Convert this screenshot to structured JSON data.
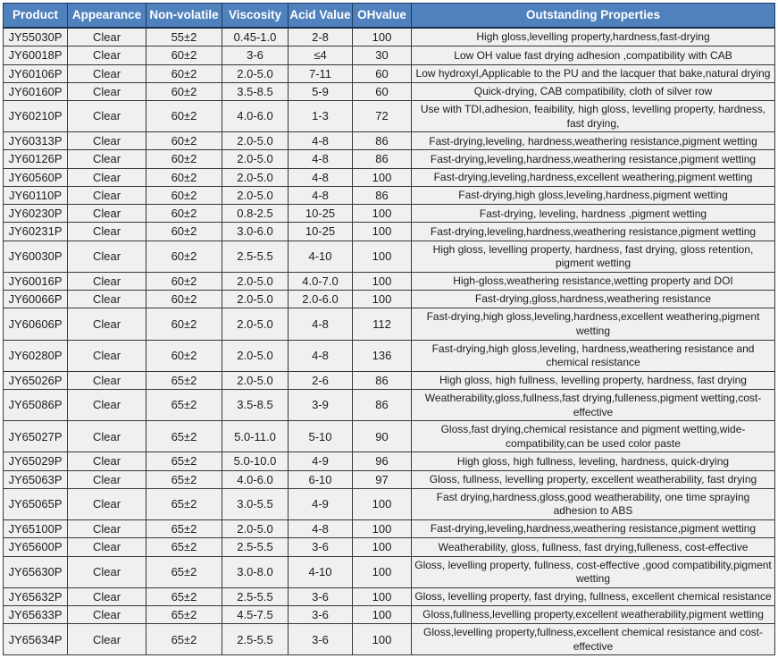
{
  "colors": {
    "header_bg": "#4f81bd",
    "header_text": "#ffffff",
    "cell_bg": "#f0f0f0",
    "cell_text": "#1c1c1c",
    "grid_border": "#383838"
  },
  "table": {
    "columns": [
      "Product",
      "Appearance",
      "Non-volatile",
      "Viscosity",
      "Acid Value",
      "OHvalue",
      "Outstanding Properties"
    ],
    "fields": [
      "product",
      "appearance",
      "non_volatile",
      "viscosity",
      "acid_value",
      "oh_value",
      "properties"
    ],
    "rows": [
      {
        "product": "JY55030P",
        "appearance": "Clear",
        "non_volatile": "55±2",
        "viscosity": "0.45-1.0",
        "acid_value": "2-8",
        "oh_value": "100",
        "properties": "High gloss,levelling property,hardness,fast-drying"
      },
      {
        "product": "JY60018P",
        "appearance": "Clear",
        "non_volatile": "60±2",
        "viscosity": "3-6",
        "acid_value": "≤4",
        "oh_value": "30",
        "properties": "Low OH value fast drying adhesion ,compatibility with CAB"
      },
      {
        "product": "JY60106P",
        "appearance": "Clear",
        "non_volatile": "60±2",
        "viscosity": "2.0-5.0",
        "acid_value": "7-11",
        "oh_value": "60",
        "properties": "Low hydroxyl,Applicable to the PU and the lacquer that bake,natural drying"
      },
      {
        "product": "JY60160P",
        "appearance": "Clear",
        "non_volatile": "60±2",
        "viscosity": "3.5-8.5",
        "acid_value": "5-9",
        "oh_value": "60",
        "properties": "Quick-drying, CAB compatibility, cloth of silver row"
      },
      {
        "product": "JY60210P",
        "appearance": "Clear",
        "non_volatile": "60±2",
        "viscosity": "4.0-6.0",
        "acid_value": "1-3",
        "oh_value": "72",
        "properties": "Use with TDI,adhesion, feaibility, high gloss, levelling property, hardness,  fast drying,"
      },
      {
        "product": "JY60313P",
        "appearance": "Clear",
        "non_volatile": "60±2",
        "viscosity": "2.0-5.0",
        "acid_value": "4-8",
        "oh_value": "86",
        "properties": "Fast-drying,leveling, hardness,weathering resistance,pigment wetting"
      },
      {
        "product": "JY60126P",
        "appearance": "Clear",
        "non_volatile": "60±2",
        "viscosity": "2.0-5.0",
        "acid_value": "4-8",
        "oh_value": "86",
        "properties": "Fast-drying,leveling,hardness,weathering resistance,pigment wetting"
      },
      {
        "product": "JY60560P",
        "appearance": "Clear",
        "non_volatile": "60±2",
        "viscosity": "2.0-5.0",
        "acid_value": "4-8",
        "oh_value": "100",
        "properties": "Fast-drying,leveling,hardness,excellent weathering,pigment wetting"
      },
      {
        "product": "JY60110P",
        "appearance": "Clear",
        "non_volatile": "60±2",
        "viscosity": "2.0-5.0",
        "acid_value": "4-8",
        "oh_value": "86",
        "properties": "Fast-drying,high gloss,leveling,hardness,pigment wetting"
      },
      {
        "product": "JY60230P",
        "appearance": "Clear",
        "non_volatile": "60±2",
        "viscosity": "0.8-2.5",
        "acid_value": "10-25",
        "oh_value": "100",
        "properties": "Fast-drying, leveling, hardness ,pigment wetting"
      },
      {
        "product": "JY60231P",
        "appearance": "Clear",
        "non_volatile": "60±2",
        "viscosity": "3.0-6.0",
        "acid_value": "10-25",
        "oh_value": "100",
        "properties": "Fast-drying,leveling,hardness,weathering resistance,pigment wetting"
      },
      {
        "product": "JY60030P",
        "appearance": "Clear",
        "non_volatile": "60±2",
        "viscosity": "2.5-5.5",
        "acid_value": "4-10",
        "oh_value": "100",
        "properties": "High gloss, levelling property,  hardness, fast drying, gloss retention, pigment wetting"
      },
      {
        "product": "JY60016P",
        "appearance": "Clear",
        "non_volatile": "60±2",
        "viscosity": "2.0-5.0",
        "acid_value": "4.0-7.0",
        "oh_value": "100",
        "properties": "High-gloss,weathering resistance,wetting property and DOI"
      },
      {
        "product": "JY60066P",
        "appearance": "Clear",
        "non_volatile": "60±2",
        "viscosity": "2.0-5.0",
        "acid_value": "2.0-6.0",
        "oh_value": "100",
        "properties": "Fast-drying,gloss,hardness,weathering resistance"
      },
      {
        "product": "JY60606P",
        "appearance": "Clear",
        "non_volatile": "60±2",
        "viscosity": "2.0-5.0",
        "acid_value": "4-8",
        "oh_value": "112",
        "properties": "Fast-drying,high gloss,leveling,hardness,excellent weathering,pigment wetting"
      },
      {
        "product": "JY60280P",
        "appearance": "Clear",
        "non_volatile": "60±2",
        "viscosity": "2.0-5.0",
        "acid_value": "4-8",
        "oh_value": "136",
        "properties": "Fast-drying,high gloss,leveling, hardness,weathering resistance and chemical resistance"
      },
      {
        "product": "JY65026P",
        "appearance": "Clear",
        "non_volatile": "65±2",
        "viscosity": "2.0-5.0",
        "acid_value": "2-6",
        "oh_value": "86",
        "properties": "High gloss, high fullness, levelling property, hardness, fast drying"
      },
      {
        "product": "JY65086P",
        "appearance": "Clear",
        "non_volatile": "65±2",
        "viscosity": "3.5-8.5",
        "acid_value": "3-9",
        "oh_value": "86",
        "properties": "Weatherability,gloss,fullness,fast drying,fulleness,pigment wetting,cost-effective"
      },
      {
        "product": "JY65027P",
        "appearance": "Clear",
        "non_volatile": "65±2",
        "viscosity": "5.0-11.0",
        "acid_value": "5-10",
        "oh_value": "90",
        "properties": "Gloss,fast drying,chemical resistance and pigment wetting,wide-compatibility,can be used color paste"
      },
      {
        "product": "JY65029P",
        "appearance": "Clear",
        "non_volatile": "65±2",
        "viscosity": "5.0-10.0",
        "acid_value": "4-9",
        "oh_value": "96",
        "properties": "High gloss, high fullness, leveling, hardness, quick-drying"
      },
      {
        "product": "JY65063P",
        "appearance": "Clear",
        "non_volatile": "65±2",
        "viscosity": "4.0-6.0",
        "acid_value": "6-10",
        "oh_value": "97",
        "properties": "Gloss, fullness, levelling property, excellent weatherability,  fast drying"
      },
      {
        "product": "JY65065P",
        "appearance": "Clear",
        "non_volatile": "65±2",
        "viscosity": "3.0-5.5",
        "acid_value": "4-9",
        "oh_value": "100",
        "properties": "Fast drying,hardness,gloss,good weatherability,  one time spraying adhesion  to ABS"
      },
      {
        "product": "JY65100P",
        "appearance": "Clear",
        "non_volatile": "65±2",
        "viscosity": "2.0-5.0",
        "acid_value": "4-8",
        "oh_value": "100",
        "properties": "Fast-drying,leveling,hardness,weathering resistance,pigment wetting"
      },
      {
        "product": "JY65600P",
        "appearance": "Clear",
        "non_volatile": "65±2",
        "viscosity": "2.5-5.5",
        "acid_value": "3-6",
        "oh_value": "100",
        "properties": "Weatherability, gloss, fullness,  fast drying,fulleness, cost-effective"
      },
      {
        "product": "JY65630P",
        "appearance": "Clear",
        "non_volatile": "65±2",
        "viscosity": "3.0-8.0",
        "acid_value": "4-10",
        "oh_value": "100",
        "properties": "Gloss, levelling property,  fullness,  cost-effective ,good compatibility,pigment wetting"
      },
      {
        "product": "JY65632P",
        "appearance": "Clear",
        "non_volatile": "65±2",
        "viscosity": "2.5-5.5",
        "acid_value": "3-6",
        "oh_value": "100",
        "properties": "Gloss, levelling property, fast drying,   fullness, excellent chemical resistance"
      },
      {
        "product": "JY65633P",
        "appearance": "Clear",
        "non_volatile": "65±2",
        "viscosity": "4.5-7.5",
        "acid_value": "3-6",
        "oh_value": "100",
        "properties": "Gloss,fullness,levelling property,excellent weatherability,pigment wetting"
      },
      {
        "product": "JY65634P",
        "appearance": "Clear",
        "non_volatile": "65±2",
        "viscosity": "2.5-5.5",
        "acid_value": "3-6",
        "oh_value": "100",
        "properties": "Gloss,levelling property,fullness,excellent chemical resistance and cost-effective"
      }
    ]
  }
}
